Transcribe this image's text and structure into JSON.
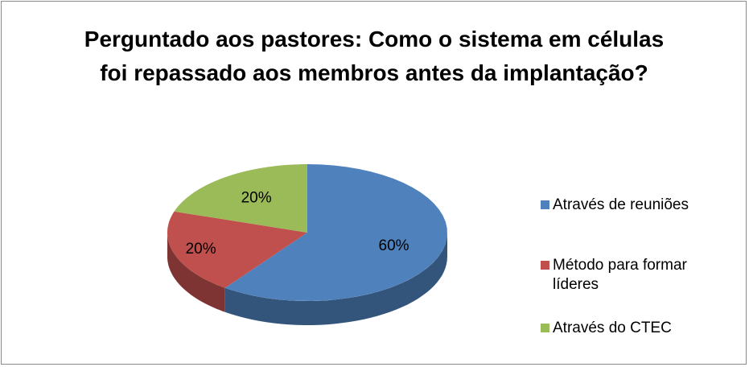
{
  "chart_data": {
    "type": "pie3d",
    "title": "Perguntado aos pastores: Como o sistema em células foi repassado aos membros antes da implantação?",
    "categories": [
      "Através de reuniões",
      "Método para formar líderes",
      "Através do CTEC"
    ],
    "values": [
      60,
      20,
      20
    ],
    "value_labels": [
      "60%",
      "20%",
      "20%"
    ],
    "colors": [
      "#4f81bd",
      "#c0504d",
      "#9bbb59"
    ],
    "legend": "right"
  }
}
